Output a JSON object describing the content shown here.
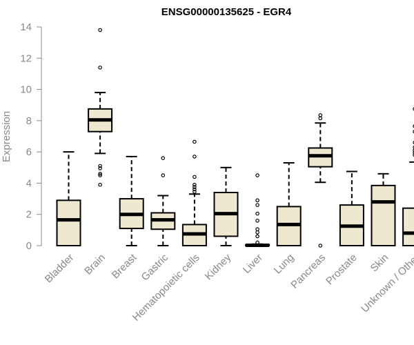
{
  "chart_data": {
    "type": "boxplot",
    "title": "ENSG00000135625 - EGR4",
    "xlabel": "",
    "ylabel": "Expression",
    "ylim": [
      0,
      14
    ],
    "yticks": [
      0,
      2,
      4,
      6,
      8,
      10,
      12,
      14
    ],
    "grid": false,
    "legend": "none",
    "colors": {
      "box_fill": "#efe8d0",
      "stroke": "#000000",
      "axis": "#888888",
      "text": "#888888"
    },
    "categories": [
      "Bladder",
      "Brain",
      "Breast",
      "Gastric",
      "Hematopoietic cells",
      "Kidney",
      "Liver",
      "Lung",
      "Pancreas",
      "Prostate",
      "Skin",
      "Unknown / Other"
    ],
    "boxes": [
      {
        "category": "Bladder",
        "whisker_low": 0,
        "q1": 0,
        "median": 1.65,
        "q3": 2.9,
        "whisker_high": 6.0,
        "outliers": []
      },
      {
        "category": "Brain",
        "whisker_low": 5.9,
        "q1": 7.3,
        "median": 8.05,
        "q3": 8.75,
        "whisker_high": 9.8,
        "outliers": [
          13.8,
          11.4,
          5.1,
          4.95,
          4.6,
          4.5,
          3.9
        ]
      },
      {
        "category": "Breast",
        "whisker_low": 0,
        "q1": 1.1,
        "median": 2.0,
        "q3": 3.0,
        "whisker_high": 5.7,
        "outliers": []
      },
      {
        "category": "Gastric",
        "whisker_low": 0,
        "q1": 1.05,
        "median": 1.65,
        "q3": 2.1,
        "whisker_high": 3.2,
        "outliers": [
          5.6,
          4.5
        ]
      },
      {
        "category": "Hematopoietic cells",
        "whisker_low": 0,
        "q1": 0,
        "median": 0.75,
        "q3": 1.35,
        "whisker_high": 3.3,
        "outliers": [
          6.65,
          5.7,
          4.4,
          3.9,
          3.75,
          3.6,
          3.45
        ]
      },
      {
        "category": "Kidney",
        "whisker_low": 0,
        "q1": 0.6,
        "median": 2.05,
        "q3": 3.4,
        "whisker_high": 5.0,
        "outliers": []
      },
      {
        "category": "Liver",
        "whisker_low": 0,
        "q1": 0,
        "median": 0.02,
        "q3": 0.05,
        "whisker_high": 0.1,
        "outliers": [
          4.5,
          2.9,
          2.6,
          2.05,
          1.6,
          1.05,
          0.85,
          0.6,
          0.2
        ]
      },
      {
        "category": "Lung",
        "whisker_low": 0,
        "q1": 0,
        "median": 1.35,
        "q3": 2.5,
        "whisker_high": 5.3,
        "outliers": []
      },
      {
        "category": "Pancreas",
        "whisker_low": 4.05,
        "q1": 5.05,
        "median": 5.75,
        "q3": 6.25,
        "whisker_high": 7.85,
        "outliers": [
          8.35,
          8.15,
          0
        ]
      },
      {
        "category": "Prostate",
        "whisker_low": 0,
        "q1": 0,
        "median": 1.25,
        "q3": 2.6,
        "whisker_high": 4.75,
        "outliers": []
      },
      {
        "category": "Skin",
        "whisker_low": 0,
        "q1": 0,
        "median": 2.8,
        "q3": 3.85,
        "whisker_high": 4.6,
        "outliers": []
      },
      {
        "category": "Unknown / Other",
        "whisker_low": 0,
        "q1": 0,
        "median": 0.8,
        "q3": 2.4,
        "whisker_high": 5.35,
        "outliers": [
          8.75,
          7.65,
          7.3,
          6.6,
          6.3,
          6.1,
          5.95,
          5.8
        ]
      }
    ]
  }
}
